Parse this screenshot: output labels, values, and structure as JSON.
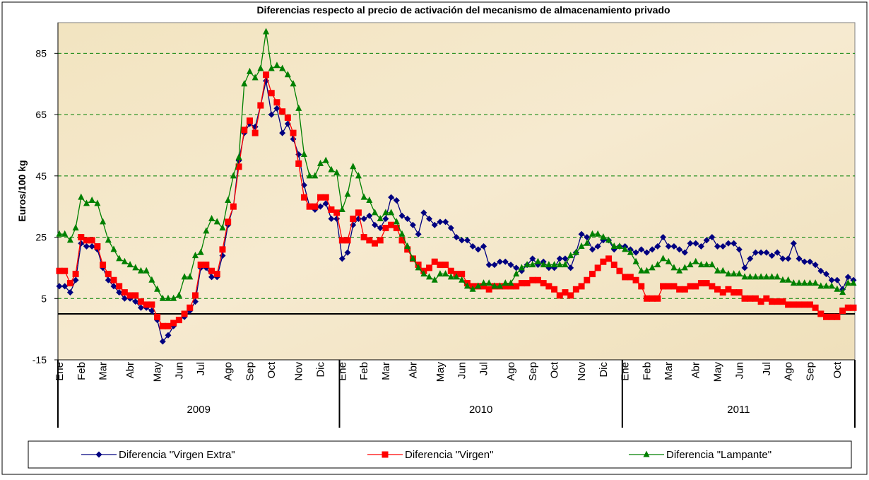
{
  "chart_data": {
    "type": "line",
    "title": "Diferencias respecto al precio de activación del mecanismo de almacenamiento privado",
    "y_label": "Euros/100 kg",
    "ylim": [
      -15,
      95
    ],
    "yticks": [
      -15,
      5,
      25,
      45,
      65,
      85
    ],
    "grid": true,
    "reference_line": 0,
    "groups": [
      "2009",
      "2010",
      "2011"
    ],
    "categories": [
      "Ene",
      null,
      null,
      null,
      "Feb",
      null,
      null,
      null,
      "Mar",
      null,
      null,
      null,
      null,
      "Abr",
      null,
      null,
      null,
      null,
      "May",
      null,
      null,
      null,
      "Jun",
      null,
      null,
      null,
      "Jul",
      null,
      null,
      null,
      null,
      "Ago",
      null,
      null,
      null,
      "Sep",
      null,
      null,
      null,
      "Oct",
      null,
      null,
      null,
      null,
      "Nov",
      null,
      null,
      null,
      "Dic",
      null,
      null,
      null,
      "Ene",
      null,
      null,
      null,
      "Feb",
      null,
      null,
      null,
      "Mar",
      null,
      null,
      null,
      null,
      "Abr",
      null,
      null,
      null,
      null,
      "May",
      null,
      null,
      null,
      "Jun",
      null,
      null,
      null,
      "Jul",
      null,
      null,
      null,
      null,
      "Ago",
      null,
      null,
      null,
      "Sep",
      null,
      null,
      null,
      "Oct",
      null,
      null,
      null,
      null,
      "Nov",
      null,
      null,
      null,
      "Dic",
      null,
      null,
      null,
      "Ene",
      null,
      null,
      null,
      "Feb",
      null,
      null,
      null,
      "Mar",
      null,
      null,
      null,
      null,
      "Abr",
      null,
      null,
      null,
      "May",
      null,
      null,
      null,
      "Jun",
      null,
      null,
      null,
      null,
      "Jul",
      null,
      null,
      null,
      "Ago",
      null,
      null,
      null,
      "Sep",
      null,
      null,
      null,
      null,
      "Oct",
      null,
      null,
      null
    ],
    "series": [
      {
        "name": "Diferencia \"Virgen Extra\"",
        "color": "#000080",
        "marker": "diamond",
        "values": [
          9,
          9,
          7,
          11,
          23,
          22,
          22,
          21,
          15,
          11,
          9,
          7,
          5,
          5,
          4,
          2,
          2,
          1,
          -2,
          -9,
          -7,
          -4,
          -2,
          -1,
          1,
          4,
          15,
          15,
          12,
          12,
          19,
          29,
          35,
          50,
          59,
          62,
          61,
          68,
          76,
          65,
          67,
          59,
          62,
          57,
          52,
          42,
          35,
          34,
          35,
          36,
          31,
          31,
          18,
          20,
          29,
          31,
          31,
          32,
          29,
          28,
          31,
          38,
          37,
          32,
          31,
          29,
          26,
          33,
          31,
          29,
          30,
          30,
          28,
          25,
          24,
          24,
          22,
          21,
          22,
          16,
          16,
          17,
          17,
          16,
          15,
          14,
          16,
          18,
          16,
          17,
          15,
          15,
          18,
          18,
          15,
          20,
          26,
          25,
          21,
          22,
          24,
          24,
          21,
          22,
          22,
          21,
          20,
          21,
          20,
          21,
          22,
          25,
          22,
          22,
          21,
          20,
          23,
          23,
          22,
          24,
          25,
          22,
          22,
          23,
          23,
          21,
          15,
          18,
          20,
          20,
          20,
          19,
          20,
          18,
          18,
          23,
          18,
          17,
          17,
          16,
          14,
          13,
          11,
          11,
          8,
          12,
          11
        ]
      },
      {
        "name": "Diferencia \"Virgen\"",
        "color": "#ff0000",
        "marker": "square",
        "values": [
          14,
          14,
          10,
          13,
          25,
          24,
          24,
          22,
          16,
          13,
          11,
          9,
          7,
          6,
          6,
          4,
          3,
          3,
          -1,
          -4,
          -4,
          -3,
          -2,
          0,
          2,
          6,
          16,
          16,
          14,
          13,
          21,
          30,
          35,
          48,
          60,
          63,
          59,
          68,
          78,
          72,
          69,
          66,
          64,
          59,
          49,
          38,
          35,
          35,
          38,
          38,
          34,
          33,
          24,
          24,
          31,
          33,
          25,
          24,
          23,
          24,
          28,
          29,
          28,
          24,
          21,
          18,
          16,
          14,
          15,
          17,
          16,
          16,
          14,
          13,
          13,
          10,
          9,
          9,
          9,
          8,
          9,
          9,
          9,
          9,
          9,
          10,
          10,
          11,
          11,
          10,
          9,
          8,
          6,
          7,
          6,
          8,
          9,
          11,
          13,
          15,
          17,
          18,
          16,
          14,
          12,
          12,
          11,
          9,
          5,
          5,
          5,
          9,
          9,
          9,
          8,
          8,
          9,
          9,
          10,
          10,
          9,
          8,
          7,
          8,
          7,
          7,
          5,
          5,
          5,
          4,
          5,
          4,
          4,
          4,
          3,
          3,
          3,
          3,
          3,
          2,
          0,
          -1,
          -1,
          -1,
          1,
          2,
          2
        ]
      },
      {
        "name": "Diferencia \"Lampante\"",
        "color": "#008000",
        "marker": "triangle",
        "values": [
          26,
          26,
          24,
          28,
          38,
          36,
          37,
          36,
          30,
          24,
          21,
          18,
          17,
          16,
          15,
          14,
          14,
          11,
          8,
          5,
          5,
          5,
          6,
          12,
          12,
          19,
          20,
          27,
          31,
          30,
          28,
          37,
          45,
          51,
          75,
          79,
          77,
          80,
          92,
          80,
          81,
          80,
          78,
          75,
          67,
          52,
          45,
          45,
          49,
          50,
          47,
          46,
          34,
          39,
          48,
          45,
          38,
          37,
          33,
          31,
          33,
          33,
          30,
          26,
          22,
          18,
          15,
          13,
          12,
          11,
          13,
          13,
          12,
          12,
          11,
          9,
          8,
          9,
          10,
          10,
          9,
          9,
          10,
          10,
          13,
          15,
          16,
          16,
          17,
          16,
          16,
          16,
          16,
          16,
          19,
          20,
          22,
          23,
          26,
          26,
          25,
          24,
          22,
          22,
          21,
          20,
          17,
          14,
          14,
          15,
          16,
          18,
          17,
          15,
          14,
          15,
          16,
          17,
          16,
          16,
          16,
          14,
          14,
          13,
          13,
          13,
          12,
          12,
          12,
          12,
          12,
          12,
          12,
          11,
          11,
          10,
          10,
          10,
          10,
          10,
          9,
          9,
          9,
          8,
          7,
          10,
          10
        ]
      }
    ]
  }
}
